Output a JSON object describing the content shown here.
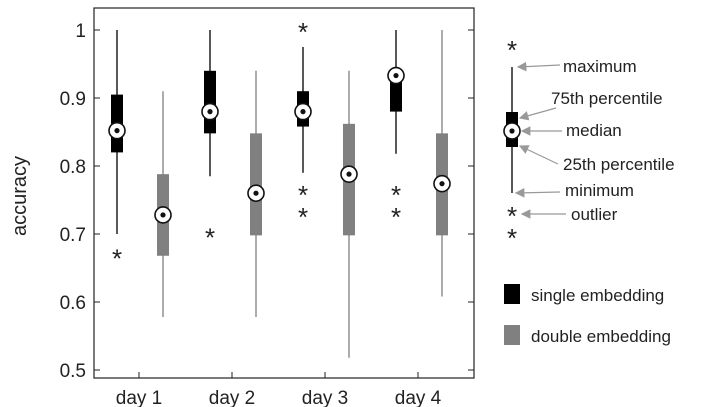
{
  "chart_data": {
    "type": "box",
    "ylabel": "accuracy",
    "xlabel": "",
    "ylim": [
      0.49,
      1.035
    ],
    "yticks": [
      0.5,
      0.6,
      0.7,
      0.8,
      0.9,
      1
    ],
    "ytick_labels": [
      "0.5",
      "0.6",
      "0.7",
      "0.8",
      "0.9",
      "1"
    ],
    "categories": [
      "day 1",
      "day 2",
      "day 3",
      "day 4"
    ],
    "grid": false,
    "legend_position": "right",
    "series": [
      {
        "name": "single embedding",
        "color": "#000000",
        "boxes": [
          {
            "min": 0.7,
            "q1": 0.82,
            "median": 0.852,
            "q3": 0.905,
            "max": 1.0,
            "outliers": [
              0.667
            ]
          },
          {
            "min": 0.785,
            "q1": 0.848,
            "median": 0.88,
            "q3": 0.94,
            "max": 1.0,
            "outliers": [
              0.698
            ]
          },
          {
            "min": 0.79,
            "q1": 0.858,
            "median": 0.88,
            "q3": 0.91,
            "max": 0.975,
            "outliers": [
              1.0,
              0.76,
              0.728
            ]
          },
          {
            "min": 0.818,
            "q1": 0.88,
            "median": 0.933,
            "q3": 0.94,
            "max": 1.0,
            "outliers": [
              0.76,
              0.728
            ]
          }
        ]
      },
      {
        "name": "double embedding",
        "color": "#808080",
        "boxes": [
          {
            "min": 0.578,
            "q1": 0.668,
            "median": 0.728,
            "q3": 0.788,
            "max": 0.91,
            "outliers": []
          },
          {
            "min": 0.578,
            "q1": 0.698,
            "median": 0.76,
            "q3": 0.848,
            "max": 0.94,
            "outliers": []
          },
          {
            "min": 0.518,
            "q1": 0.698,
            "median": 0.788,
            "q3": 0.862,
            "max": 0.94,
            "outliers": []
          },
          {
            "min": 0.608,
            "q1": 0.698,
            "median": 0.774,
            "q3": 0.848,
            "max": 1.0,
            "outliers": []
          }
        ]
      }
    ],
    "key_labels": {
      "maximum": "maximum",
      "q3": "75th percentile",
      "median": "median",
      "q1": "25th percentile",
      "minimum": "minimum",
      "outlier": "outlier"
    },
    "legend": [
      "single embedding",
      "double embedding"
    ]
  }
}
